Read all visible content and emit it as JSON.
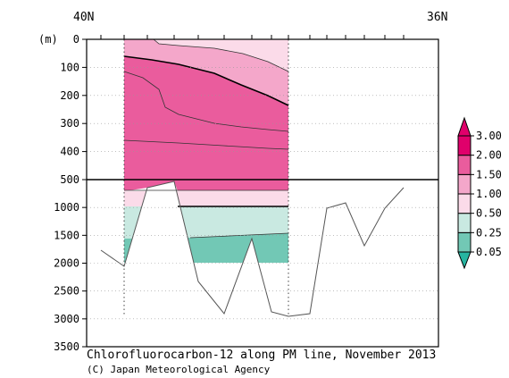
{
  "chart_data": {
    "type": "section-contour",
    "title": "Chlorofluorocarbon-12 along PM line, November 2013",
    "credit": "(C) Japan Meteorological Agency",
    "x_axis": {
      "left_label": "40N",
      "right_label": "36N"
    },
    "y_axis": {
      "unit_label": "(m)",
      "upper_ticks": [
        0,
        100,
        200,
        300,
        400,
        500
      ],
      "lower_ticks": [
        1000,
        1500,
        2000,
        2500,
        3000,
        3500
      ],
      "upper_range": [
        0,
        500
      ],
      "lower_range": [
        500,
        3500
      ]
    },
    "legend": {
      "levels": [
        "0.05",
        "0.25",
        "0.50",
        "1.00",
        "1.50",
        "2.00",
        "3.00"
      ],
      "colors": [
        "#27b5a1",
        "#72c8b5",
        "#c9e9e1",
        "#fbdbe9",
        "#f4a7ca",
        "#ea5c9d",
        "#e0006b"
      ]
    },
    "colors": {
      "hi": "#ea5c9d",
      "mid": "#f4a7ca",
      "low": "#fbdbe9",
      "c050": "#c9e9e1",
      "c025": "#72c8b5",
      "c005": "#27b5a1"
    }
  }
}
